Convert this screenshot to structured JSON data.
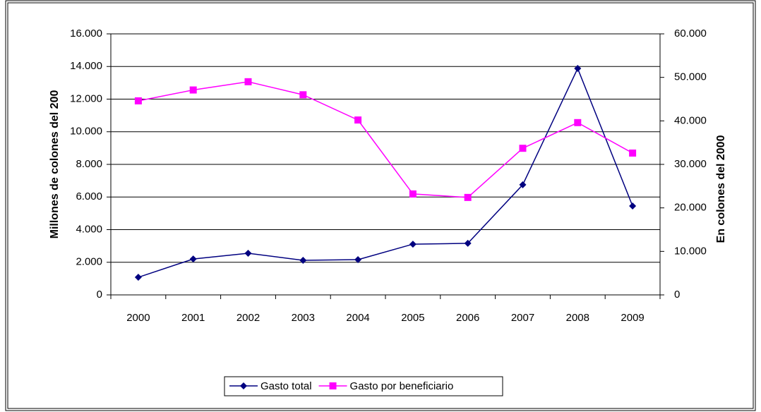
{
  "chart_data": {
    "type": "line",
    "y_label": "Millones de colones del 200",
    "y2_label": "En colones del 2000",
    "categories": [
      "2000",
      "2001",
      "2002",
      "2003",
      "2004",
      "2005",
      "2006",
      "2007",
      "2008",
      "2009"
    ],
    "series": [
      {
        "name": "Gasto total",
        "color": "#000080",
        "marker": "diamond",
        "values": [
          1080,
          2200,
          2550,
          2120,
          2160,
          3110,
          3160,
          6750,
          13880,
          5450
        ]
      },
      {
        "name": "Gasto por beneficiario",
        "color": "#ff00ff",
        "marker": "square",
        "axis": "y2",
        "values": [
          44600,
          47100,
          49000,
          46000,
          40200,
          23200,
          22400,
          33700,
          39600,
          32600
        ]
      }
    ],
    "ylim": [
      0,
      16000
    ],
    "yticks": [
      0,
      {
        "value": 2000,
        "label": "2.000"
      },
      {
        "value": 4000,
        "label": "4.000"
      },
      {
        "value": 6000,
        "label": "6.000"
      },
      {
        "value": 8000,
        "label": "8.000"
      },
      {
        "value": 10000,
        "label": "10.000"
      },
      {
        "value": 12000,
        "label": "12.000"
      },
      {
        "value": 14000,
        "label": "14.000"
      },
      {
        "value": 16000,
        "label": "16.000"
      }
    ],
    "y2lim": [
      0,
      60000
    ],
    "y2ticks": [
      0,
      {
        "value": 10000,
        "label": "10.000"
      },
      {
        "value": 20000,
        "label": "20.000"
      },
      {
        "value": 30000,
        "label": "30.000"
      },
      {
        "value": 40000,
        "label": "40.000"
      },
      {
        "value": 50000,
        "label": "50.000"
      },
      {
        "value": 60000,
        "label": "60.000"
      }
    ],
    "grid": true,
    "legend": "bottom"
  }
}
